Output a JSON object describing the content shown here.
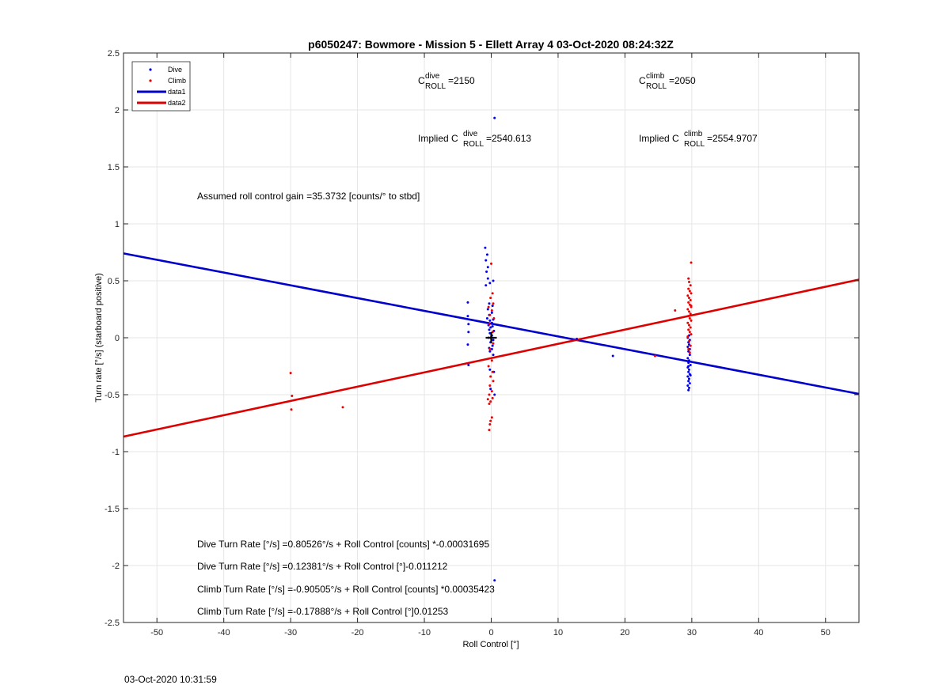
{
  "chart_data": {
    "type": "scatter",
    "title": "p6050247: Bowmore - Mission 5 - Ellett Array 4 03-Oct-2020 08:24:32Z",
    "xlabel": "Roll Control [°]",
    "ylabel": "Turn rate [°/s] (starboard positive)",
    "xlim": [
      -55,
      55
    ],
    "ylim": [
      -2.5,
      2.5
    ],
    "xticks": [
      -50,
      -40,
      -30,
      -20,
      -10,
      0,
      10,
      20,
      30,
      40,
      50
    ],
    "yticks": [
      -2.5,
      -2,
      -1.5,
      -1,
      -0.5,
      0,
      0.5,
      1,
      1.5,
      2,
      2.5
    ],
    "grid": true,
    "legend_position": "top-left",
    "legend": [
      {
        "label": "Dive",
        "style": "dot",
        "color": "#0000ee"
      },
      {
        "label": "Climb",
        "style": "dot",
        "color": "#ee0000"
      },
      {
        "label": "data1",
        "style": "line",
        "color": "#0000cc"
      },
      {
        "label": "data2",
        "style": "line",
        "color": "#dd0000"
      }
    ],
    "lines": [
      {
        "name": "data1",
        "color": "#0000cc",
        "intercept": 0.12381,
        "slope": -0.011212
      },
      {
        "name": "data2",
        "color": "#dd0000",
        "intercept": -0.17888,
        "slope": 0.01253
      }
    ],
    "series": [
      {
        "name": "Dive",
        "color": "#0000ee",
        "points": [
          [
            0.5,
            1.93
          ],
          [
            0.5,
            -2.13
          ],
          [
            -0.9,
            0.79
          ],
          [
            -0.6,
            0.73
          ],
          [
            -0.8,
            0.68
          ],
          [
            -0.5,
            0.62
          ],
          [
            -0.7,
            0.58
          ],
          [
            -0.5,
            0.52
          ],
          [
            0.3,
            0.5
          ],
          [
            -0.2,
            0.48
          ],
          [
            -0.8,
            0.46
          ],
          [
            -3.5,
            0.31
          ],
          [
            -0.3,
            0.3
          ],
          [
            0.2,
            0.28
          ],
          [
            -0.5,
            0.25
          ],
          [
            0.1,
            0.22
          ],
          [
            -0.3,
            0.2
          ],
          [
            -3.5,
            0.19
          ],
          [
            -0.6,
            0.17
          ],
          [
            0.3,
            0.16
          ],
          [
            -0.2,
            0.15
          ],
          [
            0.1,
            0.13
          ],
          [
            -3.4,
            0.12
          ],
          [
            -0.4,
            0.11
          ],
          [
            0.2,
            0.1
          ],
          [
            -0.1,
            0.09
          ],
          [
            -0.3,
            0.07
          ],
          [
            0.4,
            0.06
          ],
          [
            -3.4,
            0.05
          ],
          [
            -0.2,
            0.04
          ],
          [
            0.1,
            0.02
          ],
          [
            -0.4,
            0.0
          ],
          [
            0.3,
            -0.02
          ],
          [
            -0.1,
            -0.04
          ],
          [
            -3.5,
            -0.06
          ],
          [
            0.2,
            -0.07
          ],
          [
            -0.3,
            -0.09
          ],
          [
            0.1,
            -0.1
          ],
          [
            -0.2,
            -0.12
          ],
          [
            0.3,
            -0.15
          ],
          [
            -3.4,
            -0.24
          ],
          [
            -0.2,
            -0.28
          ],
          [
            0.4,
            -0.3
          ],
          [
            -0.1,
            -0.45
          ],
          [
            0.5,
            -0.5
          ],
          [
            12.8,
            -0.01
          ],
          [
            18.2,
            -0.16
          ],
          [
            29.5,
            -0.12
          ],
          [
            29.7,
            -0.15
          ],
          [
            29.4,
            -0.18
          ],
          [
            29.6,
            -0.2
          ],
          [
            29.5,
            -0.22
          ],
          [
            29.8,
            -0.24
          ],
          [
            29.4,
            -0.26
          ],
          [
            29.6,
            -0.28
          ],
          [
            29.5,
            -0.3
          ],
          [
            29.7,
            -0.32
          ],
          [
            29.4,
            -0.34
          ],
          [
            29.6,
            -0.36
          ],
          [
            29.5,
            -0.38
          ],
          [
            29.7,
            -0.4
          ],
          [
            29.4,
            -0.42
          ],
          [
            29.6,
            -0.44
          ],
          [
            29.5,
            -0.46
          ],
          [
            29.7,
            -0.1
          ],
          [
            29.4,
            -0.08
          ],
          [
            29.6,
            -0.06
          ],
          [
            29.5,
            -0.04
          ],
          [
            29.7,
            -0.02
          ],
          [
            29.4,
            0.0
          ],
          [
            29.6,
            0.02
          ],
          [
            29.5,
            -0.25
          ],
          [
            29.8,
            -0.33
          ]
        ]
      },
      {
        "name": "Climb",
        "color": "#ee0000",
        "points": [
          [
            -30.0,
            -0.31
          ],
          [
            -29.8,
            -0.51
          ],
          [
            -29.9,
            -0.63
          ],
          [
            -22.2,
            -0.61
          ],
          [
            24.5,
            -0.16
          ],
          [
            27.5,
            0.24
          ],
          [
            0.0,
            0.65
          ],
          [
            0.2,
            0.39
          ],
          [
            -0.1,
            0.35
          ],
          [
            0.3,
            0.3
          ],
          [
            -0.4,
            0.27
          ],
          [
            0.1,
            0.24
          ],
          [
            -0.2,
            0.2
          ],
          [
            0.4,
            0.17
          ],
          [
            -0.3,
            0.12
          ],
          [
            0.2,
            0.05
          ],
          [
            -0.1,
            0.0
          ],
          [
            0.3,
            -0.05
          ],
          [
            -0.2,
            -0.1
          ],
          [
            0.1,
            -0.2
          ],
          [
            -0.4,
            -0.25
          ],
          [
            0.2,
            -0.3
          ],
          [
            -0.1,
            -0.34
          ],
          [
            0.3,
            -0.38
          ],
          [
            -0.2,
            -0.42
          ],
          [
            0.1,
            -0.47
          ],
          [
            -0.3,
            -0.5
          ],
          [
            0.2,
            -0.53
          ],
          [
            -0.1,
            -0.56
          ],
          [
            -0.5,
            -0.54
          ],
          [
            -0.3,
            -0.58
          ],
          [
            0.1,
            -0.7
          ],
          [
            -0.1,
            -0.73
          ],
          [
            -0.2,
            -0.76
          ],
          [
            -0.3,
            -0.81
          ],
          [
            29.9,
            0.66
          ],
          [
            29.5,
            0.52
          ],
          [
            29.6,
            0.49
          ],
          [
            29.8,
            0.46
          ],
          [
            29.5,
            0.43
          ],
          [
            29.7,
            0.41
          ],
          [
            29.9,
            0.39
          ],
          [
            29.4,
            0.37
          ],
          [
            29.6,
            0.35
          ],
          [
            29.8,
            0.33
          ],
          [
            29.5,
            0.31
          ],
          [
            29.7,
            0.29
          ],
          [
            29.9,
            0.27
          ],
          [
            29.4,
            0.25
          ],
          [
            29.6,
            0.23
          ],
          [
            29.8,
            0.21
          ],
          [
            29.5,
            0.19
          ],
          [
            29.7,
            0.17
          ],
          [
            29.9,
            0.15
          ],
          [
            29.4,
            0.13
          ],
          [
            29.6,
            0.11
          ],
          [
            29.8,
            0.09
          ],
          [
            29.5,
            0.07
          ],
          [
            29.7,
            0.05
          ],
          [
            29.9,
            0.03
          ],
          [
            29.4,
            0.01
          ],
          [
            29.6,
            -0.03
          ],
          [
            29.8,
            -0.07
          ],
          [
            29.5,
            -0.1
          ],
          [
            29.7,
            -0.13
          ],
          [
            29.9,
            0.28
          ]
        ]
      }
    ],
    "center_marker": {
      "x": 0,
      "y": 0,
      "symbol": "+"
    }
  },
  "annotations": {
    "c_dive_sup": "dive",
    "c_dive_sub": "ROLL",
    "c_dive_val": "=2150",
    "c_climb_sup": "climb",
    "c_climb_sub": "ROLL",
    "c_climb_val": "=2050",
    "implied_prefix": "Implied C",
    "implied_dive_val": "=2540.613",
    "implied_climb_val": "=2554.9707",
    "gain_text": "Assumed roll control gain =35.3732 [counts/° to stbd]",
    "eq1": "Dive Turn Rate [°/s] =0.80526°/s + Roll Control [counts] *-0.00031695",
    "eq2": "Dive Turn Rate [°/s] =0.12381°/s + Roll Control [°]-0.011212",
    "eq3": "Climb Turn Rate [°/s] =-0.90505°/s + Roll Control [counts] *0.00035423",
    "eq4": "Climb Turn Rate [°/s] =-0.17888°/s + Roll Control [°]0.01253",
    "c_letter": "C"
  },
  "footer": {
    "timestamp": "03-Oct-2020 10:31:59"
  }
}
